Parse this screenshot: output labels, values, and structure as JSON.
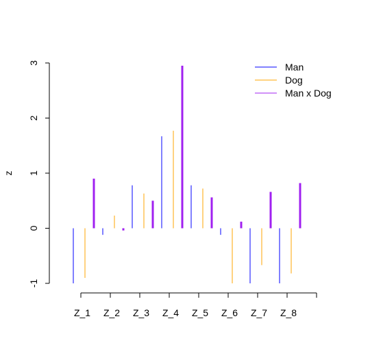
{
  "chart_data": {
    "type": "bar",
    "title": "",
    "xlabel": "",
    "ylabel": "z",
    "ylim": [
      -1,
      3
    ],
    "yticks": [
      -1,
      0,
      1,
      2,
      3
    ],
    "categories": [
      "Z_1",
      "Z_2",
      "Z_3",
      "Z_4",
      "Z_5",
      "Z_6",
      "Z_7",
      "Z_8"
    ],
    "series": [
      {
        "name": "Man",
        "color": "#0000FF",
        "width": 1,
        "values": [
          -1.0,
          -0.12,
          0.78,
          1.67,
          0.78,
          -0.12,
          -1.0,
          -1.0
        ]
      },
      {
        "name": "Dog",
        "color": "#FFA500",
        "width": 1,
        "values": [
          -0.9,
          0.23,
          0.63,
          1.77,
          0.72,
          -1.0,
          -0.67,
          -0.82
        ]
      },
      {
        "name": "Man x Dog",
        "color": "#A020F0",
        "width": 3,
        "values": [
          0.9,
          -0.04,
          0.5,
          2.95,
          0.56,
          0.12,
          0.66,
          0.82
        ]
      }
    ],
    "legend_position": "top-right",
    "grid": false
  }
}
